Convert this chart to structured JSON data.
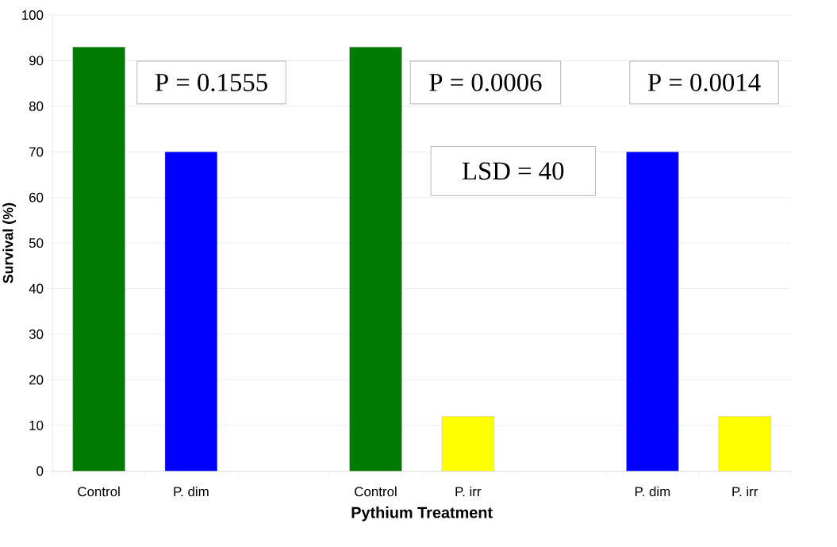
{
  "chart_data": {
    "type": "bar",
    "xlabel": "Pythium Treatment",
    "ylabel": "Survival (%)",
    "categories": [
      "Control",
      "P. dim",
      null,
      "Control",
      "P. irr",
      null,
      "P. dim",
      "P. irr"
    ],
    "values": [
      93,
      70,
      null,
      93,
      12,
      null,
      70,
      12
    ],
    "colors": [
      "#007a00",
      "#0000ff",
      null,
      "#007a00",
      "#ffff00",
      null,
      "#0000ff",
      "#ffff00"
    ],
    "ylim": [
      0,
      100
    ],
    "yticks": [
      0,
      10,
      20,
      30,
      40,
      50,
      60,
      70,
      80,
      90,
      100
    ],
    "grid": "y",
    "annotations": [
      "P = 0.1555",
      "P = 0.0006",
      "P = 0.0014",
      "LSD = 40"
    ]
  }
}
